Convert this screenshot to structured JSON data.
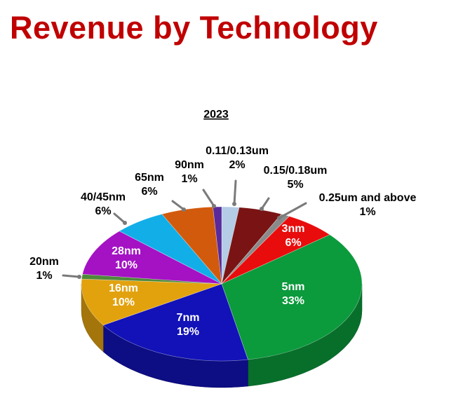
{
  "page": {
    "title": "Revenue by Technology"
  },
  "chart_data": {
    "type": "pie",
    "title": "2023",
    "start_angle_deg": 90,
    "direction": "clockwise",
    "units": "%",
    "slices": [
      {
        "name": "0.11/0.13um",
        "value": 2,
        "color": "#b4cce6"
      },
      {
        "name": "0.15/0.18um",
        "value": 5,
        "color": "#7a1414"
      },
      {
        "name": "0.25um and above",
        "value": 1,
        "color": "#8a8a8a"
      },
      {
        "name": "3nm",
        "value": 6,
        "color": "#e80c0c"
      },
      {
        "name": "5nm",
        "value": 33,
        "color": "#0b9a3c"
      },
      {
        "name": "7nm",
        "value": 19,
        "color": "#1212b8"
      },
      {
        "name": "16nm",
        "value": 10,
        "color": "#e2a20e"
      },
      {
        "name": "20nm",
        "value": 1,
        "color": "#4e8a3a"
      },
      {
        "name": "28nm",
        "value": 10,
        "color": "#a412c4"
      },
      {
        "name": "40/45nm",
        "value": 6,
        "color": "#12aee8"
      },
      {
        "name": "65nm",
        "value": 6,
        "color": "#d25a0c"
      },
      {
        "name": "90nm",
        "value": 1,
        "color": "#5a2a9a"
      }
    ]
  }
}
